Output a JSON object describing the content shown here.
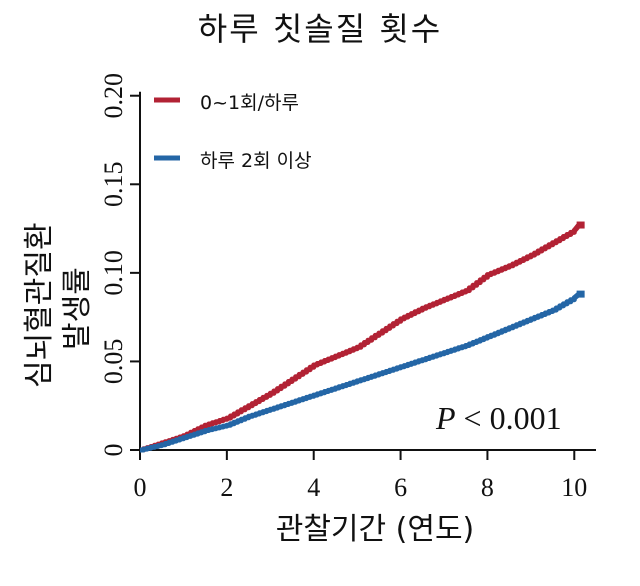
{
  "chart_data": {
    "type": "line",
    "title": "하루 칫솔질 횟수",
    "xlabel": "관찰기간 (연도)",
    "ylabel_lines": [
      "심뇌혈관질환",
      "발생률"
    ],
    "xlim": [
      0,
      10.5
    ],
    "ylim": [
      0,
      0.21
    ],
    "x_ticks": [
      0,
      2,
      4,
      6,
      8,
      10
    ],
    "x_tick_labels": [
      "0",
      "2",
      "4",
      "6",
      "8",
      "10"
    ],
    "y_ticks": [
      0,
      0.05,
      0.1,
      0.15,
      0.2
    ],
    "y_tick_labels": [
      "0",
      "0.05",
      "0.10",
      "0.15",
      "0.20"
    ],
    "grid": false,
    "legend_position": "top-left",
    "annotation": {
      "label": "P",
      "operator": "<",
      "value": "0.001"
    },
    "series": [
      {
        "name": "0~1회/하루",
        "color": "#b22234",
        "x": [
          0,
          0.5,
          1,
          1.5,
          2,
          2.5,
          3,
          3.5,
          4,
          4.5,
          5,
          5.5,
          6,
          6.5,
          7,
          7.5,
          8,
          8.5,
          9,
          9.5,
          10,
          10.1
        ],
        "y": [
          0,
          0.004,
          0.008,
          0.014,
          0.018,
          0.025,
          0.032,
          0.04,
          0.048,
          0.053,
          0.058,
          0.066,
          0.074,
          0.08,
          0.085,
          0.09,
          0.099,
          0.104,
          0.11,
          0.117,
          0.124,
          0.127
        ]
      },
      {
        "name": "하루 2회 이상",
        "color": "#2466a6",
        "x": [
          0,
          0.5,
          1,
          1.5,
          2,
          2.5,
          3,
          3.5,
          4,
          4.5,
          5,
          5.5,
          6,
          6.5,
          7,
          7.5,
          8,
          8.5,
          9,
          9.5,
          10,
          10.1
        ],
        "y": [
          0,
          0.003,
          0.007,
          0.011,
          0.014,
          0.019,
          0.023,
          0.027,
          0.031,
          0.035,
          0.039,
          0.043,
          0.047,
          0.051,
          0.055,
          0.059,
          0.064,
          0.069,
          0.074,
          0.079,
          0.086,
          0.088
        ]
      }
    ]
  }
}
